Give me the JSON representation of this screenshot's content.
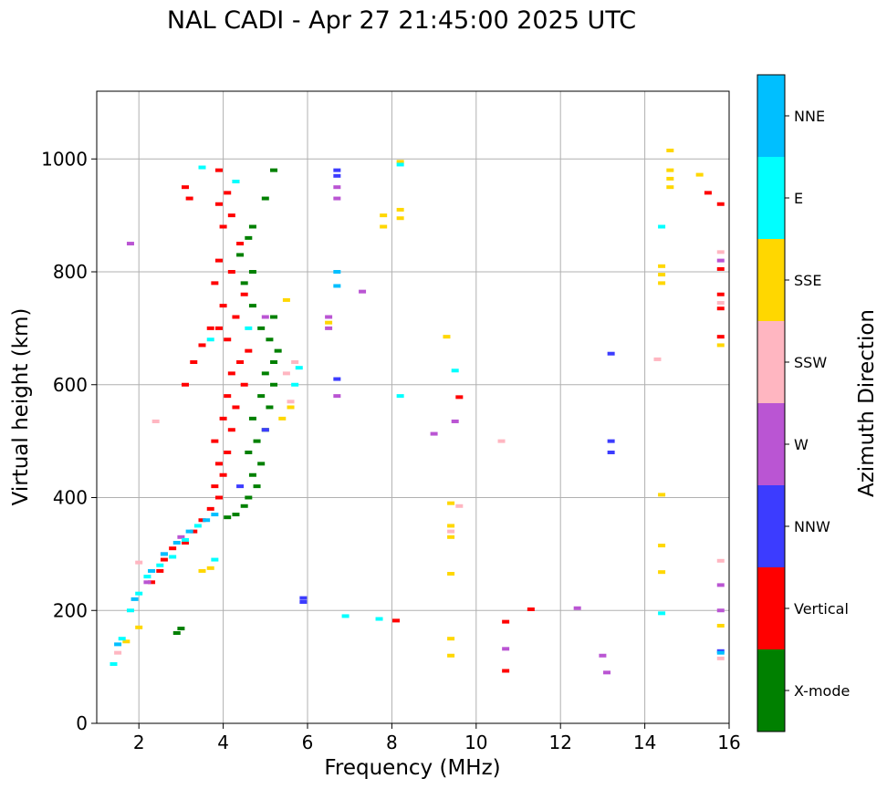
{
  "chart_data": {
    "type": "scatter",
    "title": "NAL CADI - Apr 27 21:45:00 2025 UTC",
    "xlabel": "Frequency (MHz)",
    "ylabel": "Virtual height (km)",
    "xlim": [
      1,
      16
    ],
    "ylim": [
      0,
      1120
    ],
    "xticks": [
      2,
      4,
      6,
      8,
      10,
      12,
      14,
      16
    ],
    "yticks": [
      0,
      200,
      400,
      600,
      800,
      1000
    ],
    "grid": true,
    "colorbar": {
      "label": "Azimuth Direction",
      "categories": [
        "X-mode",
        "Vertical",
        "NNW",
        "W",
        "SSW",
        "SSE",
        "E",
        "NNE"
      ],
      "colors": [
        "#008000",
        "#ff0000",
        "#3c3cff",
        "#ba55d3",
        "#ffb6c1",
        "#ffd700",
        "#00ffff",
        "#00bfff"
      ]
    },
    "series": [
      {
        "name": "X-mode",
        "points": [
          [
            2.9,
            160
          ],
          [
            3.0,
            168
          ],
          [
            4.1,
            365
          ],
          [
            4.3,
            370
          ],
          [
            4.5,
            385
          ],
          [
            4.6,
            400
          ],
          [
            4.8,
            420
          ],
          [
            4.7,
            440
          ],
          [
            4.9,
            460
          ],
          [
            4.6,
            480
          ],
          [
            4.8,
            500
          ],
          [
            5.0,
            520
          ],
          [
            4.7,
            540
          ],
          [
            5.1,
            560
          ],
          [
            4.9,
            580
          ],
          [
            5.2,
            600
          ],
          [
            5.0,
            620
          ],
          [
            5.2,
            640
          ],
          [
            5.3,
            660
          ],
          [
            5.1,
            680
          ],
          [
            4.9,
            700
          ],
          [
            5.2,
            720
          ],
          [
            4.7,
            740
          ],
          [
            4.5,
            780
          ],
          [
            4.7,
            800
          ],
          [
            4.4,
            830
          ],
          [
            4.6,
            860
          ],
          [
            4.7,
            880
          ],
          [
            5.0,
            930
          ],
          [
            5.2,
            980
          ]
        ]
      },
      {
        "name": "Vertical",
        "points": [
          [
            2.3,
            250
          ],
          [
            2.5,
            270
          ],
          [
            2.6,
            290
          ],
          [
            2.8,
            310
          ],
          [
            3.1,
            320
          ],
          [
            3.3,
            340
          ],
          [
            3.5,
            360
          ],
          [
            3.7,
            380
          ],
          [
            3.9,
            400
          ],
          [
            3.8,
            420
          ],
          [
            4.0,
            440
          ],
          [
            3.9,
            460
          ],
          [
            4.1,
            480
          ],
          [
            3.8,
            500
          ],
          [
            4.2,
            520
          ],
          [
            4.0,
            540
          ],
          [
            4.3,
            560
          ],
          [
            4.1,
            580
          ],
          [
            4.5,
            600
          ],
          [
            4.2,
            620
          ],
          [
            4.4,
            640
          ],
          [
            4.6,
            660
          ],
          [
            4.1,
            680
          ],
          [
            3.9,
            700
          ],
          [
            4.3,
            720
          ],
          [
            4.0,
            740
          ],
          [
            4.5,
            760
          ],
          [
            3.8,
            780
          ],
          [
            4.2,
            800
          ],
          [
            3.9,
            820
          ],
          [
            4.4,
            850
          ],
          [
            4.0,
            880
          ],
          [
            4.2,
            900
          ],
          [
            3.9,
            920
          ],
          [
            4.1,
            940
          ],
          [
            4.3,
            960
          ],
          [
            3.9,
            980
          ],
          [
            3.1,
            950
          ],
          [
            3.2,
            930
          ],
          [
            3.1,
            600
          ],
          [
            3.3,
            640
          ],
          [
            3.5,
            670
          ],
          [
            3.7,
            700
          ],
          [
            8.1,
            182
          ],
          [
            9.6,
            578
          ],
          [
            10.7,
            180
          ],
          [
            10.7,
            93
          ],
          [
            11.3,
            202
          ],
          [
            15.5,
            940
          ],
          [
            15.8,
            920
          ],
          [
            15.8,
            805
          ],
          [
            15.8,
            760
          ],
          [
            15.8,
            735
          ],
          [
            15.8,
            685
          ]
        ]
      },
      {
        "name": "NNW",
        "points": [
          [
            4.4,
            420
          ],
          [
            5.0,
            520
          ],
          [
            5.9,
            215
          ],
          [
            5.9,
            222
          ],
          [
            6.7,
            970
          ],
          [
            6.7,
            980
          ],
          [
            6.7,
            610
          ],
          [
            13.2,
            655
          ],
          [
            13.2,
            480
          ],
          [
            13.2,
            500
          ],
          [
            15.8,
            128
          ]
        ]
      },
      {
        "name": "W",
        "points": [
          [
            1.8,
            850
          ],
          [
            2.2,
            250
          ],
          [
            2.6,
            300
          ],
          [
            3.0,
            330
          ],
          [
            5.0,
            720
          ],
          [
            6.5,
            700
          ],
          [
            6.5,
            720
          ],
          [
            6.7,
            950
          ],
          [
            6.7,
            930
          ],
          [
            6.7,
            580
          ],
          [
            7.3,
            765
          ],
          [
            9.0,
            513
          ],
          [
            9.5,
            535
          ],
          [
            10.7,
            132
          ],
          [
            12.4,
            204
          ],
          [
            13.0,
            120
          ],
          [
            13.1,
            90
          ],
          [
            15.8,
            820
          ],
          [
            15.8,
            200
          ],
          [
            15.8,
            245
          ]
        ]
      },
      {
        "name": "SSW",
        "points": [
          [
            1.5,
            125
          ],
          [
            2.4,
            535
          ],
          [
            2.0,
            285
          ],
          [
            5.6,
            570
          ],
          [
            5.5,
            620
          ],
          [
            5.7,
            640
          ],
          [
            9.4,
            340
          ],
          [
            9.6,
            385
          ],
          [
            10.6,
            500
          ],
          [
            14.3,
            645
          ],
          [
            15.8,
            835
          ],
          [
            15.8,
            745
          ],
          [
            15.8,
            288
          ],
          [
            15.8,
            115
          ]
        ]
      },
      {
        "name": "SSE",
        "points": [
          [
            1.7,
            145
          ],
          [
            2.0,
            170
          ],
          [
            3.5,
            270
          ],
          [
            3.7,
            275
          ],
          [
            5.4,
            540
          ],
          [
            5.6,
            560
          ],
          [
            5.5,
            750
          ],
          [
            6.5,
            710
          ],
          [
            7.8,
            880
          ],
          [
            7.8,
            900
          ],
          [
            8.2,
            895
          ],
          [
            8.2,
            910
          ],
          [
            8.2,
            995
          ],
          [
            9.3,
            685
          ],
          [
            9.4,
            330
          ],
          [
            9.4,
            350
          ],
          [
            9.4,
            390
          ],
          [
            9.4,
            265
          ],
          [
            9.4,
            150
          ],
          [
            9.4,
            120
          ],
          [
            14.4,
            810
          ],
          [
            14.4,
            795
          ],
          [
            14.4,
            780
          ],
          [
            14.4,
            405
          ],
          [
            14.4,
            315
          ],
          [
            14.4,
            268
          ],
          [
            14.6,
            1015
          ],
          [
            14.6,
            980
          ],
          [
            14.6,
            965
          ],
          [
            14.6,
            950
          ],
          [
            15.3,
            972
          ],
          [
            15.8,
            670
          ],
          [
            15.8,
            173
          ]
        ]
      },
      {
        "name": "E",
        "points": [
          [
            1.4,
            105
          ],
          [
            1.6,
            150
          ],
          [
            1.8,
            200
          ],
          [
            2.0,
            230
          ],
          [
            2.2,
            260
          ],
          [
            2.5,
            280
          ],
          [
            2.8,
            295
          ],
          [
            3.1,
            325
          ],
          [
            3.4,
            350
          ],
          [
            3.5,
            985
          ],
          [
            3.7,
            680
          ],
          [
            3.8,
            290
          ],
          [
            4.3,
            960
          ],
          [
            4.6,
            700
          ],
          [
            5.7,
            600
          ],
          [
            5.8,
            630
          ],
          [
            6.9,
            190
          ],
          [
            7.7,
            185
          ],
          [
            8.2,
            990
          ],
          [
            8.2,
            580
          ],
          [
            9.5,
            625
          ],
          [
            14.4,
            880
          ],
          [
            14.4,
            195
          ]
        ]
      },
      {
        "name": "NNE",
        "points": [
          [
            1.5,
            140
          ],
          [
            1.9,
            220
          ],
          [
            2.3,
            270
          ],
          [
            2.6,
            300
          ],
          [
            2.9,
            320
          ],
          [
            3.2,
            340
          ],
          [
            3.6,
            360
          ],
          [
            3.8,
            370
          ],
          [
            6.7,
            800
          ],
          [
            6.7,
            775
          ],
          [
            15.8,
            125
          ]
        ]
      }
    ]
  }
}
